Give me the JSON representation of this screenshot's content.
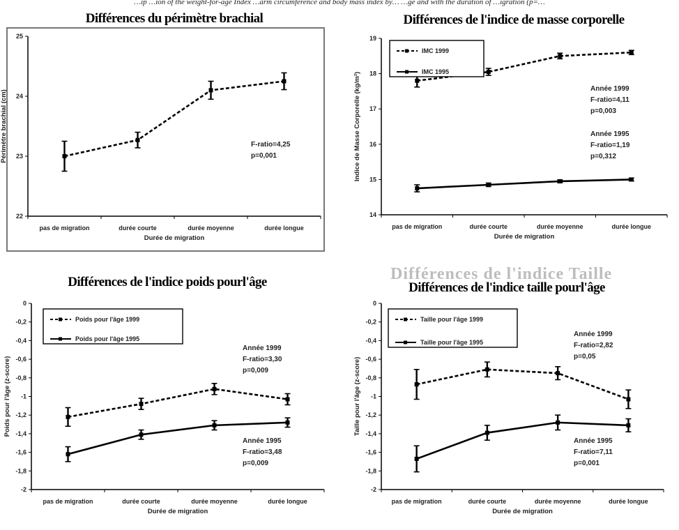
{
  "caption": "…ip            …ion of the weight-for-age Index …arm circumference and body mass index by…  …ge and with the duration of …igration (p=…",
  "ghost_text": "Différences de l'indice Taille",
  "chart_data": [
    {
      "type": "line",
      "title": "Différences du périmètre brachial",
      "xlabel": "Durée de migration",
      "ylabel": "Périmètre brachial (cm)",
      "categories": [
        "pas de migration",
        "durée courte",
        "durée moyenne",
        "durée longue"
      ],
      "ylim": [
        22,
        25
      ],
      "yticks": [
        "22",
        "23",
        "24",
        "25"
      ],
      "series": [
        {
          "values": [
            23.0,
            23.27,
            24.1,
            24.25
          ],
          "err": [
            0.25,
            0.13,
            0.15,
            0.14
          ],
          "dash": true
        }
      ],
      "annotations": [
        {
          "lines": [
            "F-ratio=4,25",
            "p=0,001"
          ],
          "near": "right-middle"
        }
      ],
      "legend": null,
      "grid": false
    },
    {
      "type": "line",
      "title": "Différences de l'indice de masse corporelle",
      "xlabel": "Durée de migration",
      "ylabel": "Indice de Masse Corporelle (kg/m²)",
      "categories": [
        "pas de migration",
        "durée courte",
        "durée moyenne",
        "durée longue"
      ],
      "ylim": [
        14,
        19
      ],
      "yticks": [
        "14",
        "15",
        "16",
        "17",
        "18",
        "19"
      ],
      "series": [
        {
          "name": "IMC 1999",
          "values": [
            17.8,
            18.05,
            18.5,
            18.6
          ],
          "err": [
            0.18,
            0.1,
            0.08,
            0.06
          ],
          "dash": true
        },
        {
          "name": "IMC 1995",
          "values": [
            14.75,
            14.85,
            14.95,
            15.0
          ],
          "err": [
            0.1,
            0.05,
            0.04,
            0.04
          ],
          "dash": false
        }
      ],
      "annotations": [
        {
          "lines": [
            "Année 1999",
            "F-ratio=4,11",
            "p=0,003"
          ],
          "near": "upper-right"
        },
        {
          "lines": [
            "Année 1995",
            "F-ratio=1,19",
            "p=0,312"
          ],
          "near": "middle-right"
        }
      ],
      "legend": "top-left",
      "grid": false
    },
    {
      "type": "line",
      "title": "Différences de l'indice poids pourl'âge",
      "xlabel": "Durée de migration",
      "ylabel": "Poids pour l'âge (z-score)",
      "categories": [
        "pas de migration",
        "durée courte",
        "durée moyenne",
        "durée longue"
      ],
      "ylim": [
        -2,
        0
      ],
      "yticks": [
        "0",
        "-0,2",
        "-0,4",
        "-0,6",
        "-0,8",
        "-1",
        "-1,2",
        "-1,4",
        "-1,6",
        "-1,8",
        "-2"
      ],
      "series": [
        {
          "name": "Poids pour l'âge 1999",
          "values": [
            -1.22,
            -1.08,
            -0.92,
            -1.03
          ],
          "err": [
            0.1,
            0.06,
            0.06,
            0.06
          ],
          "dash": true
        },
        {
          "name": "Poids pour l'âge 1995",
          "values": [
            -1.62,
            -1.41,
            -1.31,
            -1.28
          ],
          "err": [
            0.08,
            0.05,
            0.05,
            0.05
          ],
          "dash": false
        }
      ],
      "annotations": [
        {
          "lines": [
            "Année 1999",
            "F-ratio=3,30",
            "p=0,009"
          ],
          "near": "upper-right"
        },
        {
          "lines": [
            "Année 1995",
            "F-ratio=3,48",
            "p=0,009"
          ],
          "near": "lower-right"
        }
      ],
      "legend": "top-left",
      "grid": false
    },
    {
      "type": "line",
      "title": "Différences de l'indice taille pourl'âge",
      "xlabel": "Durée de migration",
      "ylabel": "Taille pour l'âge (z-score)",
      "categories": [
        "pas de migration",
        "durée courte",
        "durée moyenne",
        "durée longue"
      ],
      "ylim": [
        -2,
        0
      ],
      "yticks": [
        "0",
        "-0,2",
        "-0,4",
        "-0,6",
        "-0,8",
        "-1",
        "-1,2",
        "-1,4",
        "-1,6",
        "-1,8",
        "-2"
      ],
      "series": [
        {
          "name": "Taille pour l'âge 1999",
          "values": [
            -0.87,
            -0.71,
            -0.75,
            -1.03
          ],
          "err": [
            0.16,
            0.08,
            0.07,
            0.1
          ],
          "dash": true
        },
        {
          "name": "Taille pour l'âge 1995",
          "values": [
            -1.67,
            -1.39,
            -1.28,
            -1.31
          ],
          "err": [
            0.14,
            0.08,
            0.08,
            0.07
          ],
          "dash": false
        }
      ],
      "annotations": [
        {
          "lines": [
            "Année 1999",
            "F-ratio=2,82",
            "p=0,05"
          ],
          "near": "upper-right"
        },
        {
          "lines": [
            "Année 1995",
            "F-ratio=7,11",
            "p=0,001"
          ],
          "near": "lower-right"
        }
      ],
      "legend": "top-left",
      "grid": false
    }
  ]
}
